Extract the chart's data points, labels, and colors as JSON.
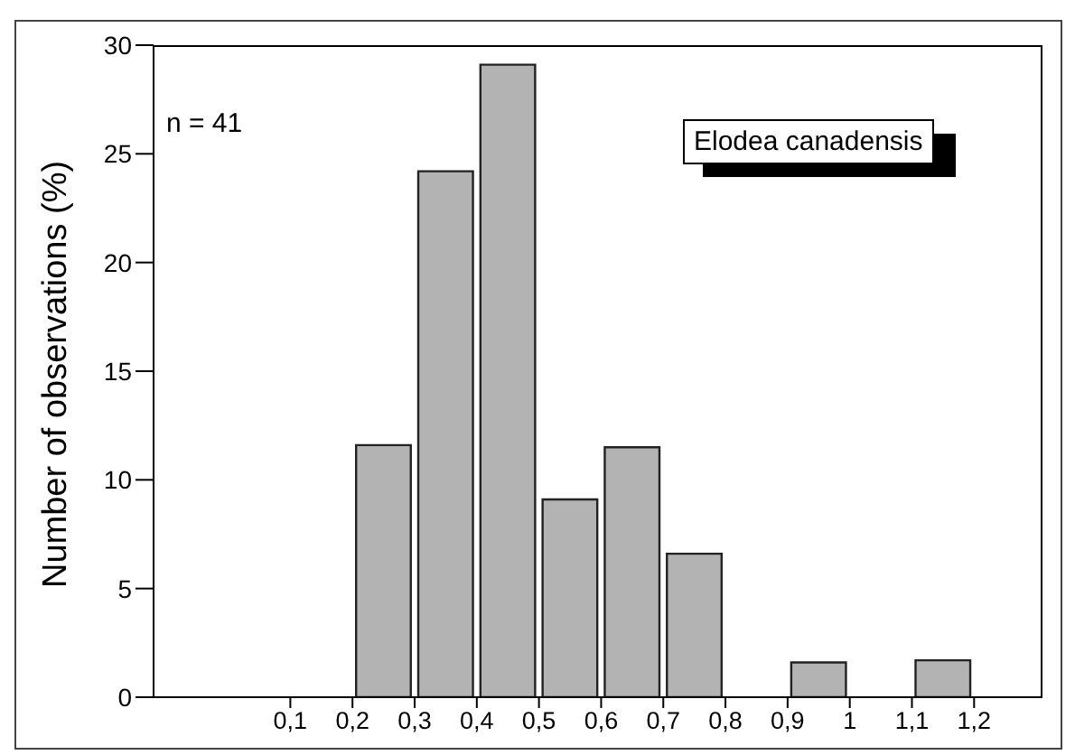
{
  "chart_data": {
    "type": "histogram",
    "ylabel": "Number of observations (%)",
    "annotations": [
      "n = 41",
      "Elodea canadensis"
    ],
    "bins": [
      0.2,
      0.3,
      0.4,
      0.5,
      0.6,
      0.7,
      0.8,
      0.9,
      1.0,
      1.1,
      1.2
    ],
    "values": [
      11.6,
      24.2,
      29.1,
      9.1,
      11.5,
      6.6,
      0,
      1.6,
      0,
      1.7
    ],
    "color": "#b3b3b3",
    "xlim": [
      -0.12,
      1.31
    ],
    "xticks": [
      {
        "value": 0.1,
        "label": "0,1"
      },
      {
        "value": 0.2,
        "label": "0,2"
      },
      {
        "value": 0.3,
        "label": "0,3"
      },
      {
        "value": 0.4,
        "label": "0,4"
      },
      {
        "value": 0.5,
        "label": "0,5"
      },
      {
        "value": 0.6,
        "label": "0,6"
      },
      {
        "value": 0.7,
        "label": "0,7"
      },
      {
        "value": 0.8,
        "label": "0,8"
      },
      {
        "value": 0.9,
        "label": "0,9"
      },
      1,
      {
        "value": 1.1,
        "label": "1,1"
      },
      {
        "value": 1.2,
        "label": "1,2"
      }
    ],
    "ylim": [
      0,
      30
    ],
    "yticks": [
      0,
      5,
      10,
      15,
      20,
      25,
      30
    ],
    "grid": false,
    "legend": false
  }
}
